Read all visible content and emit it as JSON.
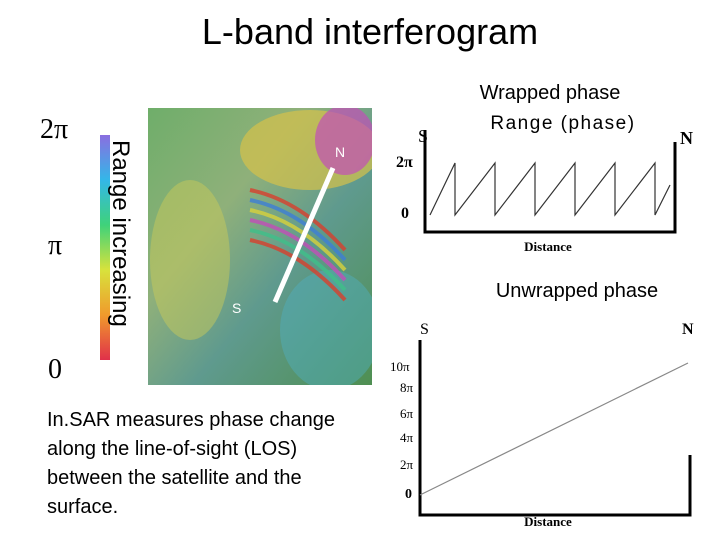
{
  "title": "L-band interferogram",
  "colorbar": {
    "labels": [
      "2π",
      "π",
      "0"
    ],
    "caption": "Range increasing"
  },
  "image": {
    "north": "N",
    "south": "S"
  },
  "wrapped": {
    "title": "Wrapped phase",
    "ylabel": "Range (phase)",
    "start": "S",
    "end": "N",
    "yticks": [
      "2π",
      "0"
    ],
    "xlabel": "Distance"
  },
  "unwrapped": {
    "title": "Unwrapped phase",
    "start": "S",
    "end": "N",
    "yticks": [
      "10π",
      "8π",
      "6π",
      "4π",
      "2π",
      "0"
    ],
    "xlabel": "Distance"
  },
  "body": {
    "lines": [
      "In.SAR measures phase change",
      "along the line-of-sight (LOS)",
      "between the satellite and the",
      "surface."
    ]
  }
}
